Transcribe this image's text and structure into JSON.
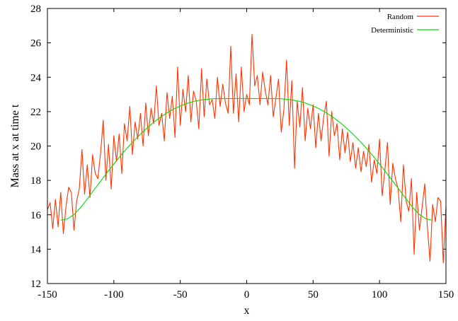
{
  "chart_data": {
    "type": "line",
    "title": "",
    "xlabel": "x",
    "ylabel": "Mass at x at time t",
    "xlim": [
      -150,
      150
    ],
    "ylim": [
      12,
      28
    ],
    "x_ticks": [
      -150,
      -100,
      -50,
      0,
      50,
      100,
      150
    ],
    "y_ticks": [
      12,
      14,
      16,
      18,
      20,
      22,
      24,
      26,
      28
    ],
    "grid": false,
    "legend_position": "top-right",
    "series": [
      {
        "name": "Random",
        "color": "#ff3300",
        "x": [
          -150,
          -148,
          -146,
          -144,
          -142,
          -140,
          -138,
          -136,
          -134,
          -132,
          -130,
          -128,
          -126,
          -124,
          -122,
          -120,
          -118,
          -116,
          -114,
          -112,
          -110,
          -108,
          -106,
          -104,
          -102,
          -100,
          -98,
          -96,
          -94,
          -92,
          -90,
          -88,
          -86,
          -84,
          -82,
          -80,
          -78,
          -76,
          -74,
          -72,
          -70,
          -68,
          -66,
          -64,
          -62,
          -60,
          -58,
          -56,
          -54,
          -52,
          -50,
          -48,
          -46,
          -44,
          -42,
          -40,
          -38,
          -36,
          -34,
          -32,
          -30,
          -28,
          -26,
          -24,
          -22,
          -20,
          -18,
          -16,
          -14,
          -12,
          -10,
          -8,
          -6,
          -4,
          -2,
          0,
          2,
          4,
          6,
          8,
          10,
          12,
          14,
          16,
          18,
          20,
          22,
          24,
          26,
          28,
          30,
          32,
          34,
          36,
          38,
          40,
          42,
          44,
          46,
          48,
          50,
          52,
          54,
          56,
          58,
          60,
          62,
          64,
          66,
          68,
          70,
          72,
          74,
          76,
          78,
          80,
          82,
          84,
          86,
          88,
          90,
          92,
          94,
          96,
          98,
          100,
          102,
          104,
          106,
          108,
          110,
          112,
          114,
          116,
          118,
          120,
          122,
          124,
          126,
          128,
          130,
          132,
          134,
          136,
          138,
          140,
          142,
          144,
          146,
          148,
          150
        ],
        "y": [
          16.3,
          16.7,
          15.2,
          16.9,
          15.3,
          17.3,
          14.9,
          16.5,
          17.6,
          17.3,
          15.1,
          16.8,
          17.5,
          19.8,
          17.2,
          18.9,
          17.0,
          19.5,
          18.4,
          18.1,
          19.6,
          21.5,
          18.0,
          20.1,
          17.5,
          20.6,
          19.1,
          20.7,
          18.4,
          21.3,
          20.3,
          22.3,
          19.5,
          21.4,
          20.4,
          21.9,
          20.0,
          22.5,
          20.6,
          22.2,
          21.3,
          23.5,
          21.2,
          21.9,
          20.3,
          23.1,
          21.6,
          22.9,
          20.5,
          24.6,
          21.2,
          23.3,
          22.0,
          24.1,
          21.4,
          23.2,
          22.6,
          21.0,
          24.5,
          21.7,
          23.9,
          22.4,
          22.7,
          21.6,
          24.0,
          22.3,
          23.6,
          22.5,
          21.9,
          25.8,
          21.9,
          24.2,
          21.4,
          24.6,
          22.0,
          23.0,
          22.4,
          26.5,
          23.5,
          24.1,
          22.4,
          24.3,
          23.2,
          22.4,
          24.1,
          21.7,
          22.8,
          23.9,
          20.8,
          22.1,
          25.0,
          21.2,
          23.8,
          18.7,
          22.6,
          21.1,
          23.4,
          20.3,
          22.2,
          21.0,
          22.4,
          19.9,
          21.9,
          20.3,
          21.7,
          22.6,
          19.4,
          22.0,
          20.6,
          21.3,
          19.2,
          21.0,
          19.6,
          20.8,
          19.1,
          20.2,
          18.7,
          19.9,
          18.5,
          19.7,
          18.8,
          20.1,
          17.9,
          19.2,
          18.4,
          20.4,
          17.1,
          18.6,
          20.2,
          16.6,
          19.0,
          18.1,
          17.5,
          15.6,
          18.9,
          16.8,
          16.2,
          18.1,
          13.7,
          17.3,
          15.1,
          16.4,
          17.8,
          15.3,
          13.3,
          16.6,
          15.6,
          17.0,
          16.8,
          13.2,
          16.5
        ]
      },
      {
        "name": "Deterministic",
        "color": "#00dd00",
        "x": [
          -140,
          -135,
          -130,
          -125,
          -120,
          -115,
          -110,
          -105,
          -100,
          -95,
          -90,
          -85,
          -80,
          -75,
          -70,
          -65,
          -60,
          -55,
          -50,
          -45,
          -40,
          -35,
          -30,
          -25,
          -20,
          -15,
          -10,
          -5,
          0,
          5,
          10,
          15,
          20,
          25,
          30,
          35,
          40,
          45,
          50,
          55,
          60,
          65,
          70,
          75,
          80,
          85,
          90,
          95,
          100,
          105,
          110,
          115,
          120,
          125,
          130,
          135,
          140
        ],
        "y": [
          15.68,
          15.76,
          16.01,
          16.42,
          16.92,
          17.44,
          17.95,
          18.46,
          18.95,
          19.43,
          19.88,
          20.3,
          20.69,
          21.05,
          21.38,
          21.67,
          21.93,
          22.15,
          22.33,
          22.48,
          22.59,
          22.67,
          22.72,
          22.75,
          22.76,
          22.76,
          22.76,
          22.76,
          22.76,
          22.76,
          22.76,
          22.76,
          22.76,
          22.75,
          22.72,
          22.67,
          22.59,
          22.48,
          22.33,
          22.15,
          21.93,
          21.67,
          21.38,
          21.05,
          20.69,
          20.3,
          19.88,
          19.43,
          18.95,
          18.46,
          17.95,
          17.44,
          16.92,
          16.42,
          16.01,
          15.76,
          15.68
        ]
      }
    ]
  }
}
